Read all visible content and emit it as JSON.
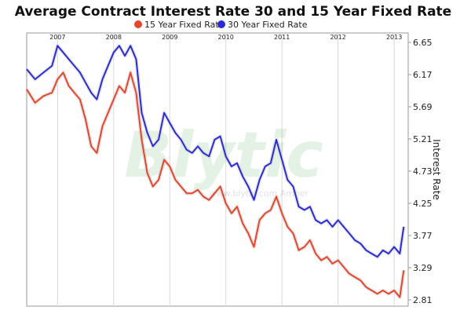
{
  "chart_data": {
    "type": "line",
    "title": "Average Contract Interest Rate 30 and 15 Year Fixed Rate",
    "ylabel": "Interest Rate",
    "xlabel": "",
    "legend_position": "top-center",
    "grid": "vertical",
    "ylim": [
      2.81,
      6.65
    ],
    "xlim": [
      2006.45,
      2013.25
    ],
    "x_ticks": [
      {
        "label": "2007",
        "x": 2007.0
      },
      {
        "label": "2008",
        "x": 2008.0
      },
      {
        "label": "2009",
        "x": 2009.0
      },
      {
        "label": "2010",
        "x": 2010.0
      },
      {
        "label": "2011",
        "x": 2011.0
      },
      {
        "label": "2012",
        "x": 2012.0
      },
      {
        "label": "2013",
        "x": 2013.0
      }
    ],
    "y_ticks": [
      "6.65",
      "6.17",
      "5.69",
      "5.21",
      "4.73",
      "4.25",
      "3.77",
      "3.29",
      "2.81"
    ],
    "watermark": {
      "text": "Blytic",
      "subtext": "www.blytic.com   Amber"
    },
    "series": [
      {
        "name": "15 Year Fixed Rate",
        "color": "#e8452c",
        "x": [
          2006.45,
          2006.6,
          2006.75,
          2006.9,
          2007.0,
          2007.1,
          2007.2,
          2007.3,
          2007.4,
          2007.5,
          2007.6,
          2007.7,
          2007.8,
          2007.9,
          2008.0,
          2008.1,
          2008.2,
          2008.3,
          2008.4,
          2008.5,
          2008.6,
          2008.7,
          2008.8,
          2008.9,
          2009.0,
          2009.1,
          2009.2,
          2009.3,
          2009.4,
          2009.5,
          2009.6,
          2009.7,
          2009.8,
          2009.9,
          2010.0,
          2010.1,
          2010.2,
          2010.3,
          2010.4,
          2010.5,
          2010.6,
          2010.7,
          2010.8,
          2010.9,
          2011.0,
          2011.1,
          2011.2,
          2011.3,
          2011.4,
          2011.5,
          2011.6,
          2011.7,
          2011.8,
          2011.9,
          2012.0,
          2012.1,
          2012.2,
          2012.3,
          2012.4,
          2012.5,
          2012.6,
          2012.7,
          2012.8,
          2012.9,
          2013.0,
          2013.1,
          2013.17
        ],
        "values": [
          5.95,
          5.75,
          5.85,
          5.9,
          6.1,
          6.2,
          6.0,
          5.9,
          5.8,
          5.5,
          5.1,
          5.0,
          5.4,
          5.6,
          5.8,
          6.0,
          5.9,
          6.2,
          5.9,
          5.2,
          4.7,
          4.5,
          4.6,
          4.9,
          4.8,
          4.6,
          4.5,
          4.4,
          4.4,
          4.45,
          4.35,
          4.3,
          4.4,
          4.5,
          4.25,
          4.1,
          4.2,
          3.95,
          3.8,
          3.6,
          4.0,
          4.1,
          4.15,
          4.35,
          4.1,
          3.9,
          3.8,
          3.55,
          3.6,
          3.7,
          3.5,
          3.4,
          3.45,
          3.35,
          3.4,
          3.3,
          3.2,
          3.15,
          3.1,
          3.0,
          2.95,
          2.9,
          2.95,
          2.9,
          2.95,
          2.85,
          3.25
        ]
      },
      {
        "name": "30 Year Fixed Rate",
        "color": "#2b2bd6",
        "x": [
          2006.45,
          2006.6,
          2006.75,
          2006.9,
          2007.0,
          2007.1,
          2007.2,
          2007.3,
          2007.4,
          2007.5,
          2007.6,
          2007.7,
          2007.8,
          2007.9,
          2008.0,
          2008.1,
          2008.2,
          2008.3,
          2008.4,
          2008.5,
          2008.6,
          2008.7,
          2008.8,
          2008.9,
          2009.0,
          2009.1,
          2009.2,
          2009.3,
          2009.4,
          2009.5,
          2009.6,
          2009.7,
          2009.8,
          2009.9,
          2010.0,
          2010.1,
          2010.2,
          2010.3,
          2010.4,
          2010.5,
          2010.6,
          2010.7,
          2010.8,
          2010.9,
          2011.0,
          2011.1,
          2011.2,
          2011.3,
          2011.4,
          2011.5,
          2011.6,
          2011.7,
          2011.8,
          2011.9,
          2012.0,
          2012.1,
          2012.2,
          2012.3,
          2012.4,
          2012.5,
          2012.6,
          2012.7,
          2012.8,
          2012.9,
          2013.0,
          2013.1,
          2013.17
        ],
        "values": [
          6.25,
          6.1,
          6.2,
          6.3,
          6.6,
          6.5,
          6.4,
          6.3,
          6.2,
          6.05,
          5.9,
          5.8,
          6.1,
          6.3,
          6.5,
          6.6,
          6.45,
          6.6,
          6.4,
          5.6,
          5.3,
          5.1,
          5.2,
          5.6,
          5.45,
          5.3,
          5.2,
          5.05,
          5.0,
          5.1,
          5.0,
          4.95,
          5.2,
          5.25,
          4.95,
          4.8,
          4.85,
          4.65,
          4.5,
          4.3,
          4.6,
          4.8,
          4.85,
          5.2,
          4.9,
          4.6,
          4.5,
          4.2,
          4.15,
          4.2,
          4.0,
          3.95,
          4.0,
          3.9,
          4.0,
          3.9,
          3.8,
          3.7,
          3.65,
          3.55,
          3.5,
          3.45,
          3.55,
          3.5,
          3.6,
          3.5,
          3.9
        ]
      }
    ]
  }
}
